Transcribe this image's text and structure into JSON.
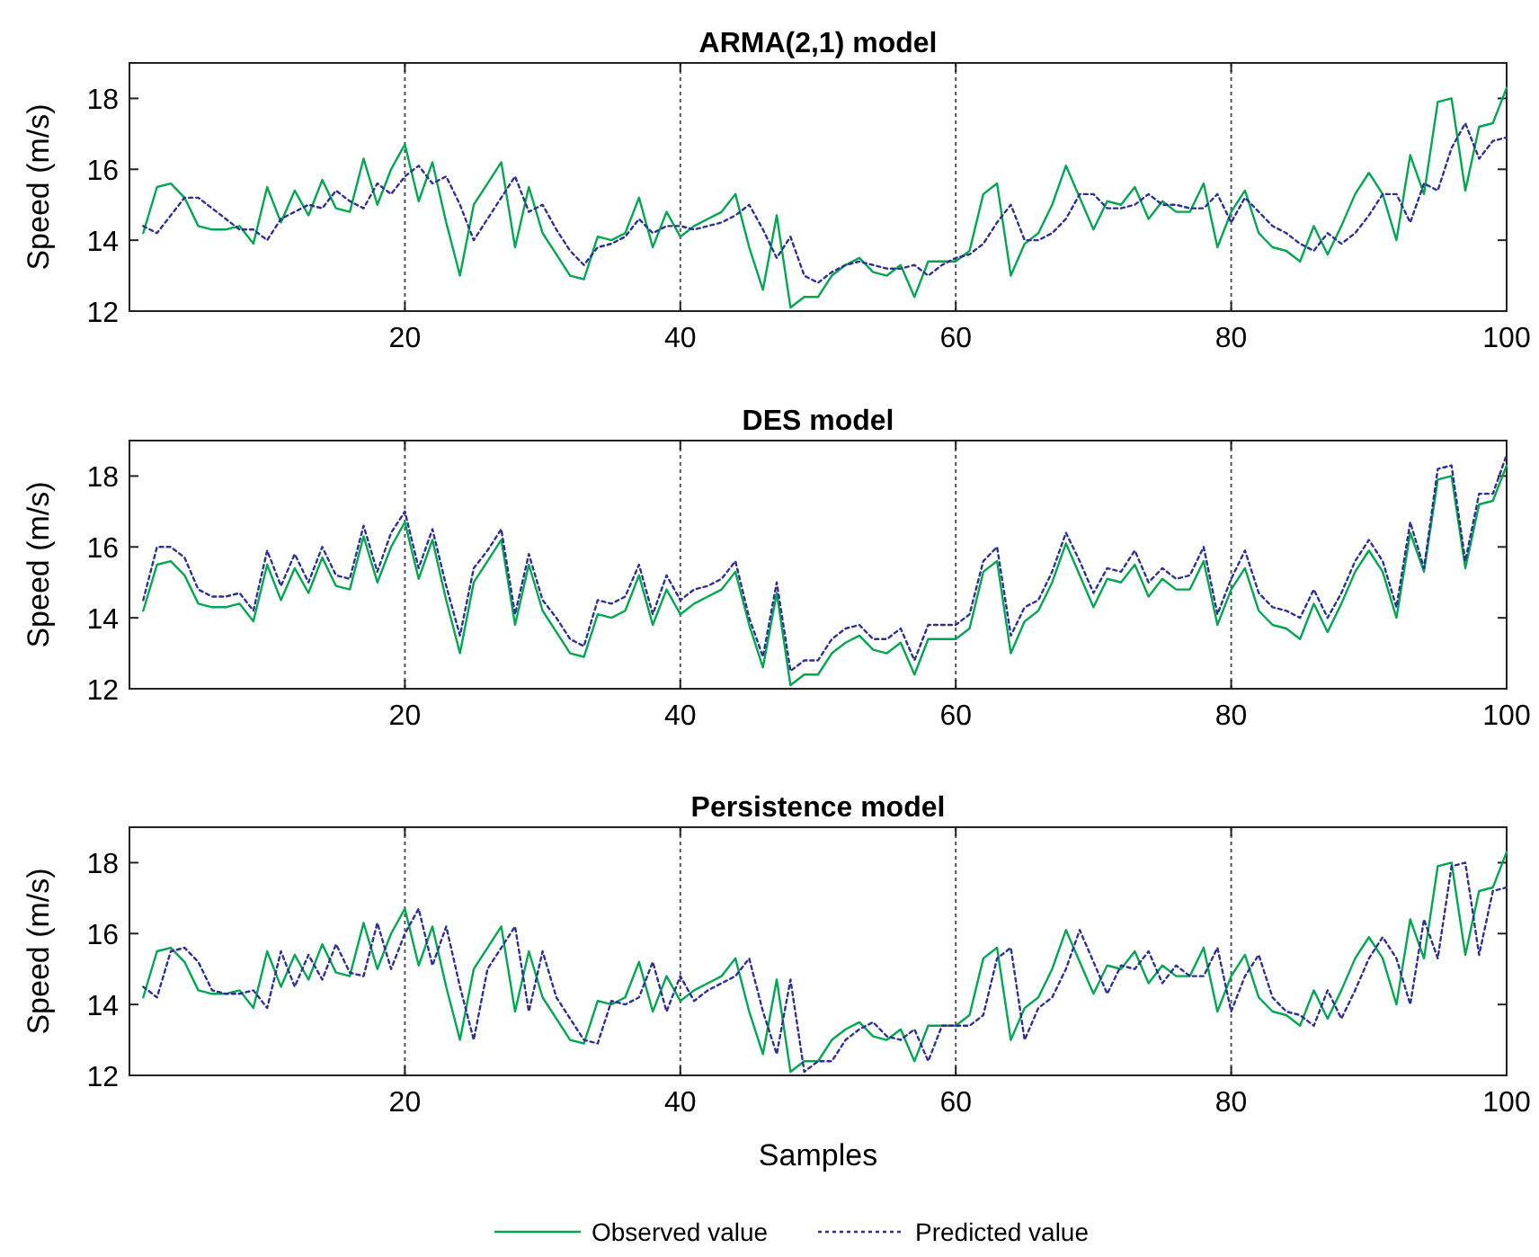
{
  "chart_data": [
    {
      "type": "line",
      "title": "ARMA(2,1) model",
      "ylabel": "Speed (m/s)",
      "x": [
        1,
        2,
        3,
        4,
        5,
        6,
        7,
        8,
        9,
        10,
        11,
        12,
        13,
        14,
        15,
        16,
        17,
        18,
        19,
        20,
        21,
        22,
        23,
        24,
        25,
        26,
        27,
        28,
        29,
        30,
        31,
        32,
        33,
        34,
        35,
        36,
        37,
        38,
        39,
        40,
        41,
        42,
        43,
        44,
        45,
        46,
        47,
        48,
        49,
        50,
        51,
        52,
        53,
        54,
        55,
        56,
        57,
        58,
        59,
        60,
        61,
        62,
        63,
        64,
        65,
        66,
        67,
        68,
        69,
        70,
        71,
        72,
        73,
        74,
        75,
        76,
        77,
        78,
        79,
        80,
        81,
        82,
        83,
        84,
        85,
        86,
        87,
        88,
        89,
        90,
        91,
        92,
        93,
        94,
        95,
        96,
        97,
        98,
        99,
        100
      ],
      "xlim": [
        0,
        100
      ],
      "xticks": [
        20,
        40,
        60,
        80,
        100
      ],
      "ylim": [
        12,
        19
      ],
      "yticks": [
        12,
        14,
        16,
        18
      ],
      "grid": "x",
      "legend": false,
      "series": [
        {
          "color": "#00a651",
          "line_style": "solid",
          "values": [
            14.2,
            15.5,
            15.6,
            15.2,
            14.4,
            14.3,
            14.3,
            14.4,
            13.9,
            15.5,
            14.5,
            15.4,
            14.7,
            15.7,
            14.9,
            14.8,
            16.3,
            15.0,
            16.0,
            16.7,
            15.1,
            16.2,
            14.5,
            13.0,
            15.0,
            15.6,
            16.2,
            13.8,
            15.5,
            14.2,
            13.6,
            13.0,
            12.9,
            14.1,
            14.0,
            14.2,
            15.2,
            13.8,
            14.8,
            14.1,
            14.4,
            14.6,
            14.8,
            15.3,
            13.8,
            12.6,
            14.7,
            12.1,
            12.4,
            12.4,
            13.0,
            13.3,
            13.5,
            13.1,
            13.0,
            13.3,
            12.4,
            13.4,
            13.4,
            13.4,
            13.7,
            15.3,
            15.6,
            13.0,
            13.9,
            14.2,
            15.0,
            16.1,
            15.2,
            14.3,
            15.1,
            15.0,
            15.5,
            14.6,
            15.1,
            14.8,
            14.8,
            15.6,
            13.8,
            14.8,
            15.4,
            14.2,
            13.8,
            13.7,
            13.4,
            14.4,
            13.6,
            14.4,
            15.3,
            15.9,
            15.3,
            14.0,
            16.4,
            15.3,
            17.9,
            18.0,
            15.4,
            17.2,
            17.3,
            18.3
          ]
        },
        {
          "color": "#2e3192",
          "line_style": "dotted",
          "values": [
            14.4,
            14.2,
            14.7,
            15.2,
            15.2,
            14.9,
            14.6,
            14.3,
            14.3,
            14.0,
            14.6,
            14.8,
            15.0,
            14.9,
            15.4,
            15.1,
            14.9,
            15.6,
            15.3,
            15.8,
            16.1,
            15.6,
            15.8,
            15.0,
            14.0,
            14.6,
            15.2,
            15.8,
            14.8,
            15.0,
            14.3,
            13.7,
            13.3,
            13.8,
            13.9,
            14.1,
            14.6,
            14.2,
            14.4,
            14.4,
            14.3,
            14.4,
            14.5,
            14.7,
            15.0,
            14.3,
            13.5,
            14.1,
            13.0,
            12.8,
            13.1,
            13.3,
            13.4,
            13.3,
            13.2,
            13.2,
            13.3,
            13.0,
            13.3,
            13.5,
            13.6,
            13.9,
            14.5,
            15.0,
            14.0,
            14.0,
            14.2,
            14.6,
            15.3,
            15.3,
            14.9,
            14.9,
            15.0,
            15.3,
            15.0,
            15.0,
            14.9,
            14.9,
            15.3,
            14.5,
            15.2,
            14.8,
            14.4,
            14.2,
            13.9,
            13.7,
            14.2,
            13.9,
            14.2,
            14.7,
            15.3,
            15.3,
            14.5,
            15.6,
            15.4,
            16.6,
            17.3,
            16.3,
            16.8,
            16.9
          ]
        }
      ]
    },
    {
      "type": "line",
      "title": "DES model",
      "ylabel": "Speed (m/s)",
      "x": [
        1,
        2,
        3,
        4,
        5,
        6,
        7,
        8,
        9,
        10,
        11,
        12,
        13,
        14,
        15,
        16,
        17,
        18,
        19,
        20,
        21,
        22,
        23,
        24,
        25,
        26,
        27,
        28,
        29,
        30,
        31,
        32,
        33,
        34,
        35,
        36,
        37,
        38,
        39,
        40,
        41,
        42,
        43,
        44,
        45,
        46,
        47,
        48,
        49,
        50,
        51,
        52,
        53,
        54,
        55,
        56,
        57,
        58,
        59,
        60,
        61,
        62,
        63,
        64,
        65,
        66,
        67,
        68,
        69,
        70,
        71,
        72,
        73,
        74,
        75,
        76,
        77,
        78,
        79,
        80,
        81,
        82,
        83,
        84,
        85,
        86,
        87,
        88,
        89,
        90,
        91,
        92,
        93,
        94,
        95,
        96,
        97,
        98,
        99,
        100
      ],
      "xlim": [
        0,
        100
      ],
      "xticks": [
        20,
        40,
        60,
        80,
        100
      ],
      "ylim": [
        12,
        19
      ],
      "yticks": [
        12,
        14,
        16,
        18
      ],
      "grid": "x",
      "legend": false,
      "series": [
        {
          "color": "#00a651",
          "line_style": "solid",
          "values": [
            14.2,
            15.5,
            15.6,
            15.2,
            14.4,
            14.3,
            14.3,
            14.4,
            13.9,
            15.5,
            14.5,
            15.4,
            14.7,
            15.7,
            14.9,
            14.8,
            16.3,
            15.0,
            16.0,
            16.7,
            15.1,
            16.2,
            14.5,
            13.0,
            15.0,
            15.6,
            16.2,
            13.8,
            15.5,
            14.2,
            13.6,
            13.0,
            12.9,
            14.1,
            14.0,
            14.2,
            15.2,
            13.8,
            14.8,
            14.1,
            14.4,
            14.6,
            14.8,
            15.3,
            13.8,
            12.6,
            14.7,
            12.1,
            12.4,
            12.4,
            13.0,
            13.3,
            13.5,
            13.1,
            13.0,
            13.3,
            12.4,
            13.4,
            13.4,
            13.4,
            13.7,
            15.3,
            15.6,
            13.0,
            13.9,
            14.2,
            15.0,
            16.1,
            15.2,
            14.3,
            15.1,
            15.0,
            15.5,
            14.6,
            15.1,
            14.8,
            14.8,
            15.6,
            13.8,
            14.8,
            15.4,
            14.2,
            13.8,
            13.7,
            13.4,
            14.4,
            13.6,
            14.4,
            15.3,
            15.9,
            15.3,
            14.0,
            16.4,
            15.3,
            17.9,
            18.0,
            15.4,
            17.2,
            17.3,
            18.3
          ]
        },
        {
          "color": "#2e3192",
          "line_style": "dotted",
          "values": [
            14.5,
            16.0,
            16.0,
            15.7,
            14.8,
            14.6,
            14.6,
            14.7,
            14.2,
            15.9,
            14.9,
            15.8,
            15.0,
            16.0,
            15.2,
            15.1,
            16.6,
            15.3,
            16.4,
            17.0,
            15.4,
            16.5,
            14.9,
            13.5,
            15.4,
            15.9,
            16.5,
            14.1,
            15.8,
            14.5,
            14.0,
            13.4,
            13.2,
            14.5,
            14.4,
            14.6,
            15.5,
            14.1,
            15.2,
            14.5,
            14.8,
            14.9,
            15.1,
            15.6,
            14.0,
            12.9,
            15.0,
            12.5,
            12.8,
            12.8,
            13.4,
            13.7,
            13.8,
            13.4,
            13.4,
            13.7,
            12.8,
            13.8,
            13.8,
            13.8,
            14.1,
            15.6,
            16.0,
            13.5,
            14.3,
            14.5,
            15.3,
            16.4,
            15.6,
            14.7,
            15.4,
            15.3,
            15.9,
            15.0,
            15.4,
            15.1,
            15.2,
            16.0,
            14.1,
            15.1,
            15.9,
            14.7,
            14.3,
            14.2,
            14.0,
            14.8,
            14.0,
            14.7,
            15.6,
            16.2,
            15.6,
            14.3,
            16.7,
            15.4,
            18.2,
            18.3,
            15.6,
            17.5,
            17.5,
            18.6
          ]
        }
      ]
    },
    {
      "type": "line",
      "title": "Persistence model",
      "xlabel": "Samples",
      "ylabel": "Speed (m/s)",
      "x": [
        1,
        2,
        3,
        4,
        5,
        6,
        7,
        8,
        9,
        10,
        11,
        12,
        13,
        14,
        15,
        16,
        17,
        18,
        19,
        20,
        21,
        22,
        23,
        24,
        25,
        26,
        27,
        28,
        29,
        30,
        31,
        32,
        33,
        34,
        35,
        36,
        37,
        38,
        39,
        40,
        41,
        42,
        43,
        44,
        45,
        46,
        47,
        48,
        49,
        50,
        51,
        52,
        53,
        54,
        55,
        56,
        57,
        58,
        59,
        60,
        61,
        62,
        63,
        64,
        65,
        66,
        67,
        68,
        69,
        70,
        71,
        72,
        73,
        74,
        75,
        76,
        77,
        78,
        79,
        80,
        81,
        82,
        83,
        84,
        85,
        86,
        87,
        88,
        89,
        90,
        91,
        92,
        93,
        94,
        95,
        96,
        97,
        98,
        99,
        100
      ],
      "xlim": [
        0,
        100
      ],
      "xticks": [
        20,
        40,
        60,
        80,
        100
      ],
      "ylim": [
        12,
        19
      ],
      "yticks": [
        12,
        14,
        16,
        18
      ],
      "grid": "x",
      "legend": "bottom",
      "series": [
        {
          "name": "Observed value",
          "color": "#00a651",
          "line_style": "solid",
          "values": [
            14.2,
            15.5,
            15.6,
            15.2,
            14.4,
            14.3,
            14.3,
            14.4,
            13.9,
            15.5,
            14.5,
            15.4,
            14.7,
            15.7,
            14.9,
            14.8,
            16.3,
            15.0,
            16.0,
            16.7,
            15.1,
            16.2,
            14.5,
            13.0,
            15.0,
            15.6,
            16.2,
            13.8,
            15.5,
            14.2,
            13.6,
            13.0,
            12.9,
            14.1,
            14.0,
            14.2,
            15.2,
            13.8,
            14.8,
            14.1,
            14.4,
            14.6,
            14.8,
            15.3,
            13.8,
            12.6,
            14.7,
            12.1,
            12.4,
            12.4,
            13.0,
            13.3,
            13.5,
            13.1,
            13.0,
            13.3,
            12.4,
            13.4,
            13.4,
            13.4,
            13.7,
            15.3,
            15.6,
            13.0,
            13.9,
            14.2,
            15.0,
            16.1,
            15.2,
            14.3,
            15.1,
            15.0,
            15.5,
            14.6,
            15.1,
            14.8,
            14.8,
            15.6,
            13.8,
            14.8,
            15.4,
            14.2,
            13.8,
            13.7,
            13.4,
            14.4,
            13.6,
            14.4,
            15.3,
            15.9,
            15.3,
            14.0,
            16.4,
            15.3,
            17.9,
            18.0,
            15.4,
            17.2,
            17.3,
            18.3
          ]
        },
        {
          "name": "Predicted value",
          "color": "#2e3192",
          "line_style": "dotted",
          "values": [
            14.5,
            14.2,
            15.5,
            15.6,
            15.2,
            14.4,
            14.3,
            14.3,
            14.4,
            13.9,
            15.5,
            14.5,
            15.4,
            14.7,
            15.7,
            14.9,
            14.8,
            16.3,
            15.0,
            16.0,
            16.7,
            15.1,
            16.2,
            14.5,
            13.0,
            15.0,
            15.6,
            16.2,
            13.8,
            15.5,
            14.2,
            13.6,
            13.0,
            12.9,
            14.1,
            14.0,
            14.2,
            15.2,
            13.8,
            14.8,
            14.1,
            14.4,
            14.6,
            14.8,
            15.3,
            13.8,
            12.6,
            14.7,
            12.1,
            12.4,
            12.4,
            13.0,
            13.3,
            13.5,
            13.1,
            13.0,
            13.3,
            12.4,
            13.4,
            13.4,
            13.4,
            13.7,
            15.3,
            15.6,
            13.0,
            13.9,
            14.2,
            15.0,
            16.1,
            15.2,
            14.3,
            15.1,
            15.0,
            15.5,
            14.6,
            15.1,
            14.8,
            14.8,
            15.6,
            13.8,
            14.8,
            15.4,
            14.2,
            13.8,
            13.7,
            13.4,
            14.4,
            13.6,
            14.4,
            15.3,
            15.9,
            15.3,
            14.0,
            16.4,
            15.3,
            17.9,
            18.0,
            15.4,
            17.2,
            17.3
          ]
        }
      ]
    }
  ]
}
